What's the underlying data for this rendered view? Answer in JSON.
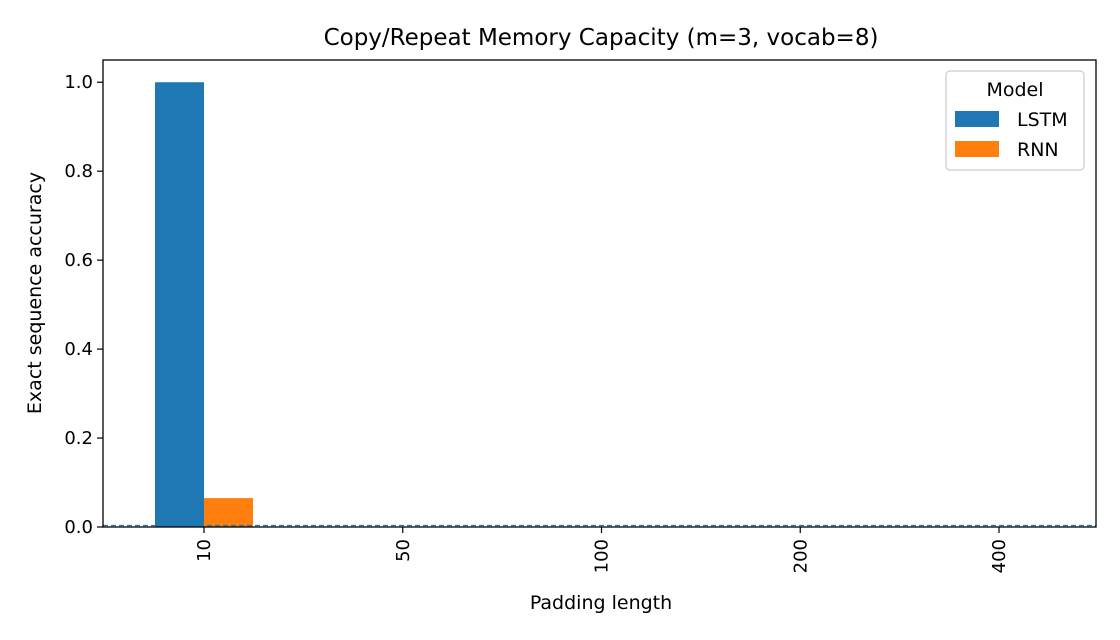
{
  "chart_data": {
    "type": "bar",
    "title": "Copy/Repeat Memory Capacity (m=3, vocab=8)",
    "xlabel": "Padding length",
    "ylabel": "Exact sequence accuracy",
    "categories": [
      "10",
      "50",
      "100",
      "200",
      "400"
    ],
    "series": [
      {
        "name": "LSTM",
        "color": "#1f77b4",
        "values": [
          1.0,
          0.0,
          0.0,
          0.0,
          0.0
        ]
      },
      {
        "name": "RNN",
        "color": "#ff7f0e",
        "values": [
          0.065,
          0.0,
          0.0,
          0.0,
          0.0
        ]
      }
    ],
    "ylim": [
      0,
      1.05
    ],
    "yticks": [
      "0.0",
      "0.2",
      "0.4",
      "0.6",
      "0.8",
      "1.0"
    ],
    "reference_line": {
      "y": 0.0,
      "style": "dashed",
      "color": "#1f77b4"
    },
    "legend": {
      "title": "Model",
      "placement": "top-right"
    },
    "grid": false
  }
}
